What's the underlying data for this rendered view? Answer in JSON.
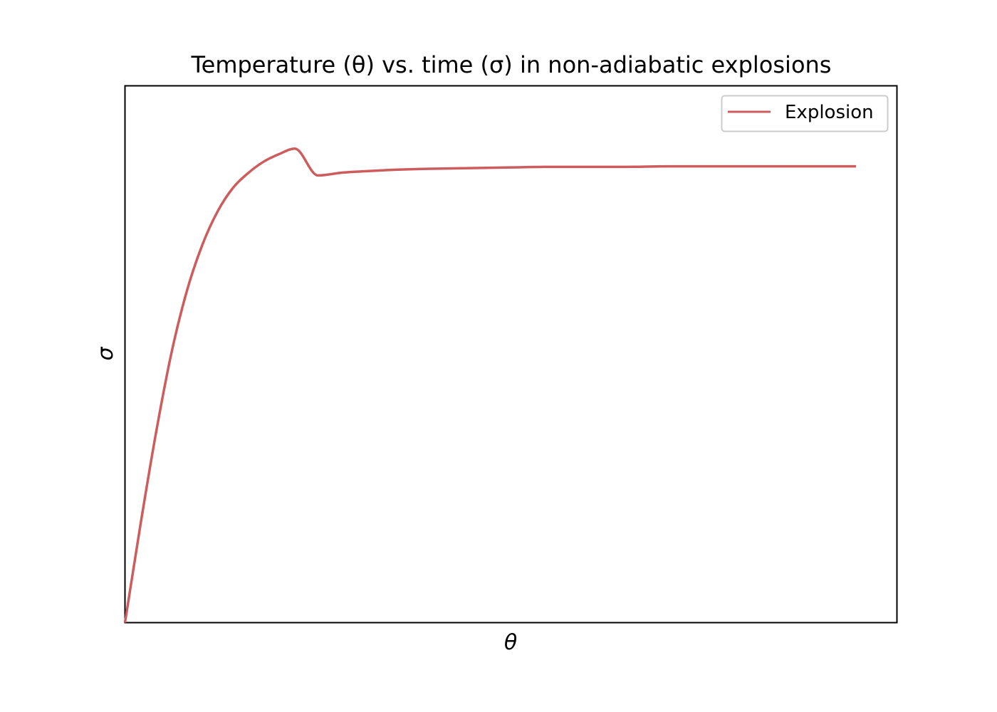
{
  "chart_data": {
    "type": "line",
    "title": "Temperature (θ) vs. time (σ) in non-adiabatic explosions",
    "xlabel": "θ",
    "ylabel": "σ",
    "xlim": [
      0,
      1
    ],
    "ylim": [
      0,
      1
    ],
    "grid": false,
    "legend": {
      "placement": "top-right"
    },
    "series": [
      {
        "name": "Explosion",
        "color": "#cd5c5c",
        "x": [
          0,
          0.02,
          0.04,
          0.06,
          0.08,
          0.1,
          0.12,
          0.14,
          0.16,
          0.18,
          0.2,
          0.22,
          0.25,
          0.28,
          0.3,
          0.34,
          0.38,
          0.42,
          0.46,
          0.5,
          0.55,
          0.6,
          0.65,
          0.7,
          0.75,
          0.8,
          0.85,
          0.9,
          0.947
        ],
        "y": [
          0,
          0.182,
          0.352,
          0.501,
          0.617,
          0.703,
          0.766,
          0.81,
          0.838,
          0.859,
          0.873,
          0.883,
          0.833,
          0.838,
          0.84,
          0.843,
          0.845,
          0.846,
          0.847,
          0.848,
          0.849,
          0.849,
          0.849,
          0.85,
          0.85,
          0.85,
          0.85,
          0.85,
          0.85
        ]
      }
    ]
  }
}
